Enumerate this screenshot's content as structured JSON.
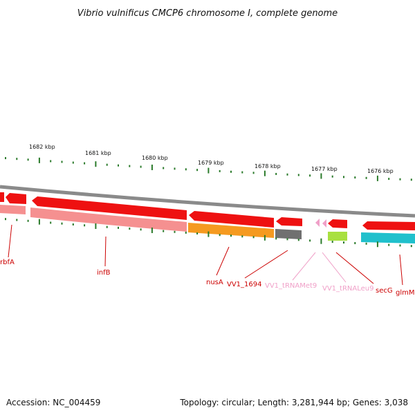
{
  "title": "Vibrio vulnificus CMCP6 chromosome I, complete genome",
  "scale_labels": [
    "1682 kbp",
    "1681 kbp",
    "1680 kbp",
    "1679 kbp",
    "1678 kbp",
    "1677 kbp",
    "1676 kbp"
  ],
  "gene_labels": [
    {
      "text": "rbfA",
      "color": "#cc0000"
    },
    {
      "text": "infB",
      "color": "#cc0000"
    },
    {
      "text": "nusA",
      "color": "#cc0000"
    },
    {
      "text": "VV1_1694",
      "color": "#cc0000"
    },
    {
      "text": "VV1_tRNAMet9",
      "color": "#f0a0c8"
    },
    {
      "text": "VV1_tRNALeu9",
      "color": "#f0a0c8"
    },
    {
      "text": "secG",
      "color": "#cc0000"
    },
    {
      "text": "glmM",
      "color": "#cc0000"
    }
  ],
  "footer": {
    "accession": "Accession: NC_004459",
    "summary": "Topology: circular; Length: 3,281,944 bp; Genes: 3,038"
  },
  "colors": {
    "cds_red": "#ee1111",
    "trna_pink": "#f0a0c8",
    "salmon": "#f59090",
    "orange": "#f59a20",
    "gray": "#707070",
    "lime": "#a8e040",
    "cyan": "#20c0cc",
    "tick_green": "#2a7a2a",
    "backbone": "#8a8a8a"
  }
}
